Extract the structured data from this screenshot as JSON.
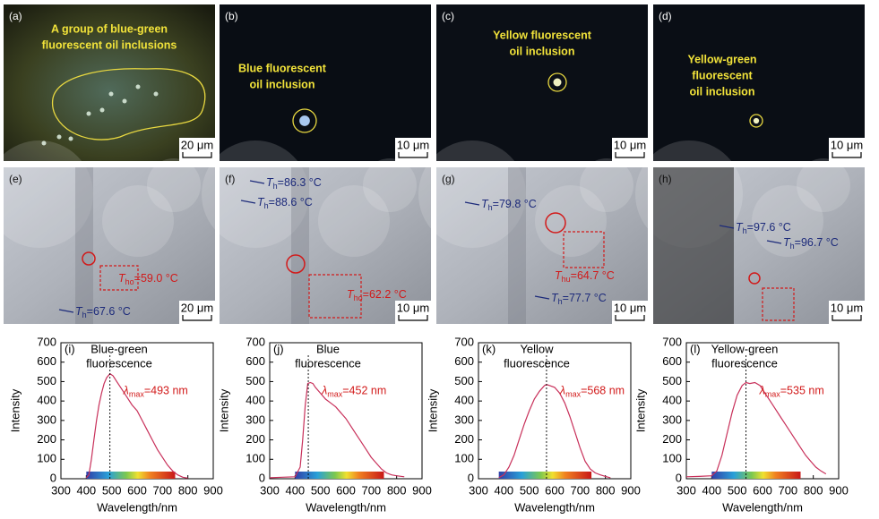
{
  "panels": [
    {
      "label": "(a)",
      "note": [
        "A group of blue-green",
        "fluorescent oil inclusions"
      ],
      "scale": "20 μm"
    },
    {
      "label": "(b)",
      "note": [
        "Blue fluorescent",
        "oil inclusion"
      ],
      "scale": "10 μm"
    },
    {
      "label": "(c)",
      "note": [
        "Yellow fluorescent",
        "oil inclusion"
      ],
      "scale": "10 μm"
    },
    {
      "label": "(d)",
      "note": [
        "Yellow-green",
        "fluorescent",
        "oil inclusion"
      ],
      "scale": "10 μm"
    },
    {
      "label": "(e)",
      "temps": [
        {
          "sym": "T",
          "sub": "ho",
          "text": "=59.0 °C"
        },
        {
          "sym": "T",
          "sub": "h",
          "text": "=67.6 °C"
        }
      ],
      "scale": "20 μm"
    },
    {
      "label": "(f)",
      "temps": [
        {
          "sym": "T",
          "sub": "h",
          "text": "=86.3 °C"
        },
        {
          "sym": "T",
          "sub": "h",
          "text": "=88.6 °C"
        },
        {
          "sym": "T",
          "sub": "ho",
          "text": "=62.2 °C"
        }
      ],
      "scale": "10 μm"
    },
    {
      "label": "(g)",
      "temps": [
        {
          "sym": "T",
          "sub": "h",
          "text": "=79.8 °C"
        },
        {
          "sym": "T",
          "sub": "hu",
          "text": "=64.7 °C"
        },
        {
          "sym": "T",
          "sub": "h",
          "text": "=77.7 °C"
        }
      ],
      "scale": "10 μm"
    },
    {
      "label": "(h)",
      "temps": [
        {
          "sym": "T",
          "sub": "h",
          "text": "=97.6 °C"
        },
        {
          "sym": "T",
          "sub": "h",
          "text": "=96.7 °C"
        }
      ],
      "scale": "10 μm"
    }
  ],
  "chart_data": [
    {
      "type": "line",
      "label": "(i)",
      "title": [
        "Blue-green",
        "fluorescence"
      ],
      "xlabel": "Wavelength/nm",
      "ylabel": "Intensity",
      "x": [
        400,
        410,
        420,
        430,
        440,
        450,
        460,
        470,
        480,
        493,
        505,
        520,
        540,
        560,
        580,
        600,
        620,
        640,
        660,
        680,
        700,
        720,
        740,
        760,
        780,
        800
      ],
      "values": [
        5,
        20,
        100,
        200,
        300,
        380,
        440,
        490,
        520,
        540,
        530,
        500,
        460,
        420,
        380,
        350,
        300,
        250,
        200,
        150,
        110,
        70,
        40,
        20,
        8,
        3
      ],
      "color": "#c8305a",
      "peak": 493,
      "peak_label": {
        "sym": "λ",
        "sub": "max",
        "text": "=493 nm"
      },
      "spectrum_bar": [
        400,
        750
      ],
      "xlim": [
        300,
        900
      ],
      "ylim": [
        0,
        700
      ],
      "xticks": [
        300,
        400,
        500,
        600,
        700,
        800,
        900
      ],
      "yticks": [
        0,
        100,
        200,
        300,
        400,
        500,
        600,
        700
      ]
    },
    {
      "type": "line",
      "label": "(j)",
      "title": [
        "Blue",
        "fluorescence"
      ],
      "xlabel": "Wavelength/nm",
      "ylabel": "Intensity",
      "x": [
        300,
        350,
        400,
        420,
        430,
        440,
        450,
        460,
        470,
        480,
        500,
        520,
        540,
        560,
        580,
        600,
        620,
        640,
        660,
        680,
        700,
        720,
        740,
        760,
        780,
        800,
        830
      ],
      "values": [
        5,
        8,
        10,
        60,
        200,
        380,
        490,
        495,
        490,
        470,
        440,
        410,
        390,
        370,
        340,
        310,
        270,
        230,
        190,
        150,
        110,
        80,
        50,
        30,
        20,
        15,
        10
      ],
      "color": "#c8305a",
      "peak": 452,
      "peak_label": {
        "sym": "λ",
        "sub": "max",
        "text": "=452 nm"
      },
      "spectrum_bar": [
        400,
        750
      ],
      "xlim": [
        300,
        900
      ],
      "ylim": [
        0,
        700
      ],
      "xticks": [
        300,
        400,
        500,
        600,
        700,
        800,
        900
      ],
      "yticks": [
        0,
        100,
        200,
        300,
        400,
        500,
        600,
        700
      ]
    },
    {
      "type": "line",
      "label": "(k)",
      "title": [
        "Yellow",
        "fluorescence"
      ],
      "xlabel": "Wavelength/nm",
      "ylabel": "Intensity",
      "x": [
        380,
        400,
        420,
        440,
        460,
        480,
        500,
        520,
        540,
        560,
        568,
        580,
        600,
        620,
        640,
        660,
        680,
        700,
        720,
        740,
        760,
        780,
        800,
        820
      ],
      "values": [
        5,
        20,
        60,
        120,
        200,
        280,
        350,
        410,
        450,
        480,
        485,
        480,
        470,
        440,
        390,
        320,
        240,
        160,
        90,
        50,
        30,
        20,
        12,
        5
      ],
      "color": "#c8305a",
      "peak": 568,
      "peak_label": {
        "sym": "λ",
        "sub": "max",
        "text": "=568 nm"
      },
      "spectrum_bar": [
        380,
        745
      ],
      "xlim": [
        300,
        900
      ],
      "ylim": [
        0,
        700
      ],
      "xticks": [
        300,
        400,
        500,
        600,
        700,
        800,
        900
      ],
      "yticks": [
        0,
        100,
        200,
        300,
        400,
        500,
        600,
        700
      ]
    },
    {
      "type": "line",
      "label": "(l)",
      "title": [
        "Yellow-green",
        "fluorescence"
      ],
      "xlabel": "Wavelength/nm",
      "ylabel": "Intensity",
      "x": [
        300,
        350,
        400,
        420,
        440,
        460,
        480,
        500,
        520,
        535,
        550,
        570,
        590,
        610,
        630,
        650,
        670,
        690,
        710,
        730,
        750,
        770,
        790,
        810,
        830,
        850
      ],
      "values": [
        10,
        12,
        15,
        40,
        120,
        230,
        340,
        430,
        480,
        495,
        490,
        495,
        480,
        440,
        400,
        360,
        320,
        280,
        240,
        200,
        160,
        120,
        90,
        60,
        40,
        25
      ],
      "color": "#c8305a",
      "peak": 535,
      "peak_label": {
        "sym": "λ",
        "sub": "max",
        "text": "=535 nm"
      },
      "spectrum_bar": [
        400,
        750
      ],
      "xlim": [
        300,
        900
      ],
      "ylim": [
        0,
        700
      ],
      "xticks": [
        300,
        400,
        500,
        600,
        700,
        800,
        900
      ],
      "yticks": [
        0,
        100,
        200,
        300,
        400,
        500,
        600,
        700
      ]
    }
  ]
}
